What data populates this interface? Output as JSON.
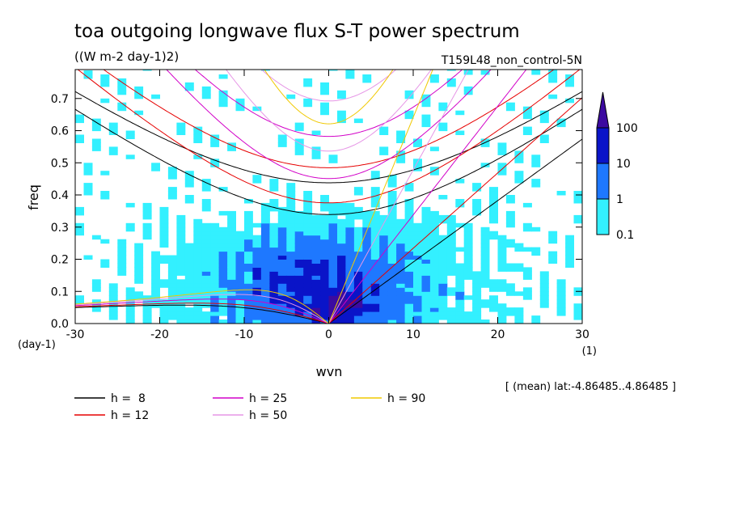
{
  "header": {
    "title": "toa outgoing longwave flux S-T power spectrum",
    "units": "((W m-2 day-1)2)",
    "run": "T159L48_non_control-5N",
    "footnote": "[ (mean) lat:-4.86485..4.86485 ]"
  },
  "chart_data": {
    "type": "heatmap",
    "title": "toa outgoing longwave flux S-T power spectrum",
    "xlabel": "wvn",
    "ylabel": "freq",
    "x_unit": "(1)",
    "y_unit": "(day-1)",
    "xlim": [
      -30,
      30
    ],
    "ylim": [
      0,
      0.79
    ],
    "x_ticks": [
      -30,
      -20,
      -10,
      0,
      10,
      20,
      30
    ],
    "x_tick_labels": [
      "-30",
      "-20",
      "-10",
      "0",
      "10",
      "20",
      "30"
    ],
    "y_ticks": [
      0,
      0.1,
      0.2,
      0.3,
      0.4,
      0.5,
      0.6,
      0.7
    ],
    "y_tick_labels": [
      "0.0",
      "0.1",
      "0.2",
      "0.3",
      "0.4",
      "0.5",
      "0.6",
      "0.7"
    ],
    "colorbar": {
      "levels": [
        0.1,
        1,
        10,
        100
      ],
      "labels": [
        "0.1",
        "1",
        "10",
        "100"
      ],
      "colors": [
        "#33f0ff",
        "#1e78ff",
        "#0a14c8",
        "#3c0aa0"
      ]
    },
    "dispersion_curves": [
      {
        "name": "h =  8",
        "h": 8,
        "color": "#000000"
      },
      {
        "name": "h = 12",
        "h": 12,
        "color": "#e60000"
      },
      {
        "name": "h = 25",
        "h": 25,
        "color": "#d200c8"
      },
      {
        "name": "h = 50",
        "h": 50,
        "color": "#e696e6"
      },
      {
        "name": "h = 90",
        "h": 90,
        "color": "#f0c800"
      }
    ],
    "grid": false,
    "legend_position": "bottom-left"
  }
}
